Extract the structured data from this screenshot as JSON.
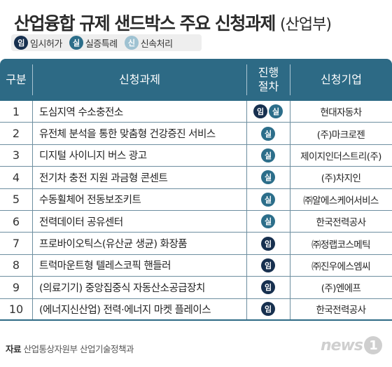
{
  "title": "산업융합 규제 샌드박스 주요 신청과제",
  "title_sub": "(산업부)",
  "legend": [
    {
      "badge": "임",
      "label": "임시허가",
      "type": "imsi"
    },
    {
      "badge": "실",
      "label": "실증특례",
      "type": "silj"
    },
    {
      "badge": "신",
      "label": "신속처리",
      "type": "sinsok"
    }
  ],
  "colors": {
    "header": "#2d6a85",
    "imsi": "#17304f",
    "silj": "#2c6e8a",
    "sinsok": "#9fc2d2"
  },
  "headers": {
    "num": "구분",
    "task": "신청과제",
    "type_line1": "진행",
    "type_line2": "절차",
    "company": "신청기업"
  },
  "rows": [
    {
      "num": "1",
      "task": "도심지역 수소충전소",
      "types": [
        "임",
        "실"
      ],
      "company": "현대자동차"
    },
    {
      "num": "2",
      "task": "유전체 분석을 통한 맞춤형 건강증진 서비스",
      "types": [
        "실"
      ],
      "company": "(주)마크로젠"
    },
    {
      "num": "3",
      "task": "디지털 사이니지 버스 광고",
      "types": [
        "실"
      ],
      "company": "제이지인더스트리(주)"
    },
    {
      "num": "4",
      "task": "전기차 충전 지원 과금형 콘센트",
      "types": [
        "실"
      ],
      "company": "(주)차지인"
    },
    {
      "num": "5",
      "task": "수동휠체어 전동보조키트",
      "types": [
        "실"
      ],
      "company": "㈜알에스케어서비스"
    },
    {
      "num": "6",
      "task": "전력데이터 공유센터",
      "types": [
        "실"
      ],
      "company": "한국전력공사"
    },
    {
      "num": "7",
      "task": "프로바이오틱스(유산균 생균) 화장품",
      "types": [
        "임"
      ],
      "company": "㈜정랩코스메틱"
    },
    {
      "num": "8",
      "task": "트럭마운트형 텔레스코픽 핸들러",
      "types": [
        "임"
      ],
      "company": "㈜진우에스엠씨"
    },
    {
      "num": "9",
      "task": "(의료기기) 중앙집중식 자동산소공급장치",
      "types": [
        "임"
      ],
      "company": "(주)엔에프"
    },
    {
      "num": "10",
      "task": "(에너지신산업) 전력·에너지 마켓 플레이스",
      "types": [
        "임"
      ],
      "company": "한국전력공사"
    }
  ],
  "source_label": "자료",
  "source_text": "산업통상자원부 산업기술정책과",
  "logo_text": "news",
  "logo_num": "1"
}
